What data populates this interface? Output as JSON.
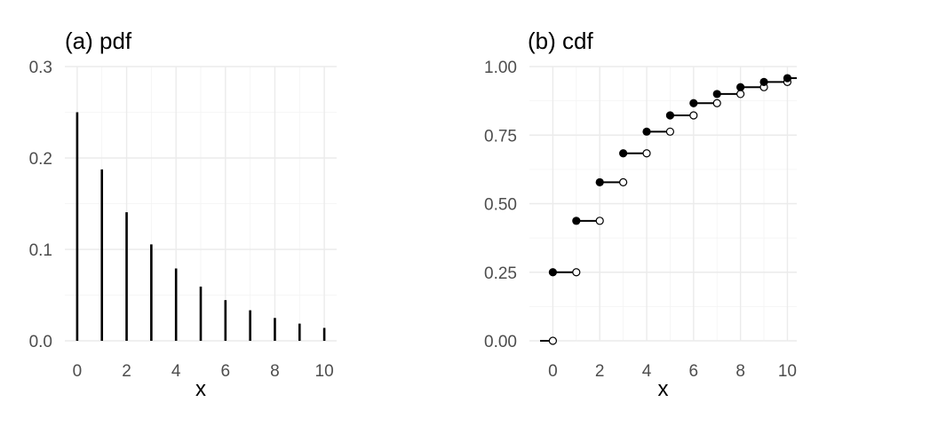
{
  "chart_data": [
    {
      "type": "bar",
      "title": "(a) pdf",
      "xlabel": "x",
      "ylabel": "",
      "x": [
        0,
        1,
        2,
        3,
        4,
        5,
        6,
        7,
        8,
        9,
        10
      ],
      "values": [
        0.25,
        0.1875,
        0.1406,
        0.1055,
        0.0791,
        0.0593,
        0.0445,
        0.0334,
        0.025,
        0.0188,
        0.0141
      ],
      "xlim": [
        -0.5,
        10.5
      ],
      "ylim": [
        0,
        0.3
      ],
      "x_ticks": [
        "0",
        "2",
        "4",
        "6",
        "8",
        "10"
      ],
      "y_ticks": [
        "0.0",
        "0.1",
        "0.2",
        "0.3"
      ],
      "grid": true,
      "bar_color": "#000000"
    },
    {
      "type": "step",
      "title": "(b) cdf",
      "xlabel": "x",
      "ylabel": "",
      "x": [
        0,
        1,
        2,
        3,
        4,
        5,
        6,
        7,
        8,
        9,
        10
      ],
      "values": [
        0.25,
        0.4375,
        0.5781,
        0.6836,
        0.7627,
        0.822,
        0.8665,
        0.8999,
        0.9249,
        0.9437,
        0.9578
      ],
      "start_value": 0,
      "xlim": [
        -1,
        10.4
      ],
      "ylim": [
        0,
        1
      ],
      "x_ticks": [
        "0",
        "2",
        "4",
        "6",
        "8",
        "10"
      ],
      "y_ticks": [
        "0.00",
        "0.25",
        "0.50",
        "0.75",
        "1.00"
      ],
      "grid": true,
      "filled_points": "left endpoint of each step",
      "open_points": "right endpoint of each step",
      "line_color": "#000000"
    }
  ]
}
